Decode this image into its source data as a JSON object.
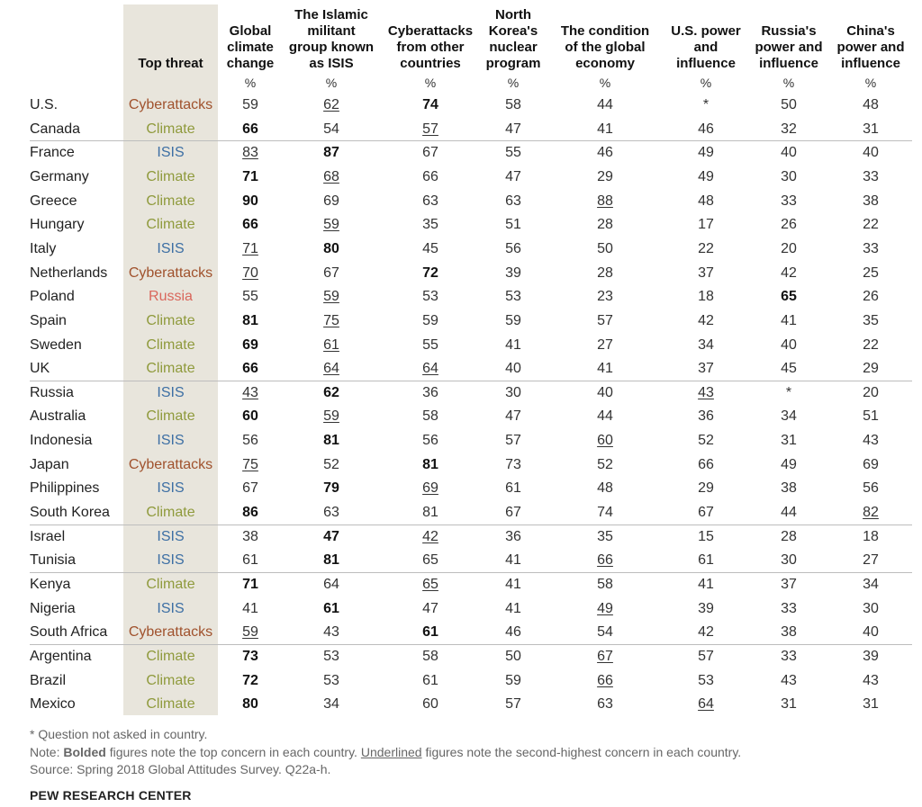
{
  "colors": {
    "Cyberattacks": "#a0522d",
    "Climate": "#8f9a3c",
    "ISIS": "#3d6fa4",
    "Russia": "#d9675c"
  },
  "chart_data": {
    "type": "table",
    "top_threat_header": "Top threat",
    "unit_label": "%",
    "columns": [
      "Global\nclimate\nchange",
      "The Islamic\nmilitant\ngroup known\nas ISIS",
      "Cyberattacks\nfrom other\ncountries",
      "North\nKorea's\nnuclear\nprogram",
      "The condition\nof the global\neconomy",
      "U.S. power\nand\ninfluence",
      "Russia's\npower and\ninfluence",
      "China's\npower and\ninfluence"
    ],
    "rows": [
      {
        "country": "U.S.",
        "top_threat": "Cyberattacks",
        "values": [
          "59",
          "62",
          "74",
          "58",
          "44",
          "*",
          "50",
          "48"
        ],
        "bold": 2,
        "underline": 1
      },
      {
        "country": "Canada",
        "top_threat": "Climate",
        "values": [
          "66",
          "54",
          "57",
          "47",
          "41",
          "46",
          "32",
          "31"
        ],
        "bold": 0,
        "underline": 2
      },
      {
        "country": "France",
        "top_threat": "ISIS",
        "values": [
          "83",
          "87",
          "67",
          "55",
          "46",
          "49",
          "40",
          "40"
        ],
        "bold": 1,
        "underline": 0
      },
      {
        "country": "Germany",
        "top_threat": "Climate",
        "values": [
          "71",
          "68",
          "66",
          "47",
          "29",
          "49",
          "30",
          "33"
        ],
        "bold": 0,
        "underline": 1
      },
      {
        "country": "Greece",
        "top_threat": "Climate",
        "values": [
          "90",
          "69",
          "63",
          "63",
          "88",
          "48",
          "33",
          "38"
        ],
        "bold": 0,
        "underline": 4
      },
      {
        "country": "Hungary",
        "top_threat": "Climate",
        "values": [
          "66",
          "59",
          "35",
          "51",
          "28",
          "17",
          "26",
          "22"
        ],
        "bold": 0,
        "underline": 1
      },
      {
        "country": "Italy",
        "top_threat": "ISIS",
        "values": [
          "71",
          "80",
          "45",
          "56",
          "50",
          "22",
          "20",
          "33"
        ],
        "bold": 1,
        "underline": 0
      },
      {
        "country": "Netherlands",
        "top_threat": "Cyberattacks",
        "values": [
          "70",
          "67",
          "72",
          "39",
          "28",
          "37",
          "42",
          "25"
        ],
        "bold": 2,
        "underline": 0
      },
      {
        "country": "Poland",
        "top_threat": "Russia",
        "values": [
          "55",
          "59",
          "53",
          "53",
          "23",
          "18",
          "65",
          "26"
        ],
        "bold": 6,
        "underline": 1
      },
      {
        "country": "Spain",
        "top_threat": "Climate",
        "values": [
          "81",
          "75",
          "59",
          "59",
          "57",
          "42",
          "41",
          "35"
        ],
        "bold": 0,
        "underline": 1
      },
      {
        "country": "Sweden",
        "top_threat": "Climate",
        "values": [
          "69",
          "61",
          "55",
          "41",
          "27",
          "34",
          "40",
          "22"
        ],
        "bold": 0,
        "underline": 1
      },
      {
        "country": "UK",
        "top_threat": "Climate",
        "values": [
          "66",
          "64",
          "64",
          "40",
          "41",
          "37",
          "45",
          "29"
        ],
        "bold": 0,
        "underline": [
          1,
          2
        ]
      },
      {
        "country": "Russia",
        "top_threat": "ISIS",
        "values": [
          "43",
          "62",
          "36",
          "30",
          "40",
          "43",
          "*",
          "20"
        ],
        "bold": 1,
        "underline": [
          0,
          5
        ]
      },
      {
        "country": "Australia",
        "top_threat": "Climate",
        "values": [
          "60",
          "59",
          "58",
          "47",
          "44",
          "36",
          "34",
          "51"
        ],
        "bold": 0,
        "underline": 1
      },
      {
        "country": "Indonesia",
        "top_threat": "ISIS",
        "values": [
          "56",
          "81",
          "56",
          "57",
          "60",
          "52",
          "31",
          "43"
        ],
        "bold": 1,
        "underline": 4
      },
      {
        "country": "Japan",
        "top_threat": "Cyberattacks",
        "values": [
          "75",
          "52",
          "81",
          "73",
          "52",
          "66",
          "49",
          "69"
        ],
        "bold": 2,
        "underline": 0
      },
      {
        "country": "Philippines",
        "top_threat": "ISIS",
        "values": [
          "67",
          "79",
          "69",
          "61",
          "48",
          "29",
          "38",
          "56"
        ],
        "bold": 1,
        "underline": 2
      },
      {
        "country": "South Korea",
        "top_threat": "Climate",
        "values": [
          "86",
          "63",
          "81",
          "67",
          "74",
          "67",
          "44",
          "82"
        ],
        "bold": 0,
        "underline": 7
      },
      {
        "country": "Israel",
        "top_threat": "ISIS",
        "values": [
          "38",
          "47",
          "42",
          "36",
          "35",
          "15",
          "28",
          "18"
        ],
        "bold": 1,
        "underline": 2
      },
      {
        "country": "Tunisia",
        "top_threat": "ISIS",
        "values": [
          "61",
          "81",
          "65",
          "41",
          "66",
          "61",
          "30",
          "27"
        ],
        "bold": 1,
        "underline": 4
      },
      {
        "country": "Kenya",
        "top_threat": "Climate",
        "values": [
          "71",
          "64",
          "65",
          "41",
          "58",
          "41",
          "37",
          "34"
        ],
        "bold": 0,
        "underline": 2
      },
      {
        "country": "Nigeria",
        "top_threat": "ISIS",
        "values": [
          "41",
          "61",
          "47",
          "41",
          "49",
          "39",
          "33",
          "30"
        ],
        "bold": 1,
        "underline": 4
      },
      {
        "country": "South Africa",
        "top_threat": "Cyberattacks",
        "values": [
          "59",
          "43",
          "61",
          "46",
          "54",
          "42",
          "38",
          "40"
        ],
        "bold": 2,
        "underline": 0
      },
      {
        "country": "Argentina",
        "top_threat": "Climate",
        "values": [
          "73",
          "53",
          "58",
          "50",
          "67",
          "57",
          "33",
          "39"
        ],
        "bold": 0,
        "underline": 4
      },
      {
        "country": "Brazil",
        "top_threat": "Climate",
        "values": [
          "72",
          "53",
          "61",
          "59",
          "66",
          "53",
          "43",
          "43"
        ],
        "bold": 0,
        "underline": 4
      },
      {
        "country": "Mexico",
        "top_threat": "Climate",
        "values": [
          "80",
          "34",
          "60",
          "57",
          "63",
          "64",
          "31",
          "31"
        ],
        "bold": 0,
        "underline": 5
      }
    ],
    "group_dividers_after_row": [
      1,
      11,
      17,
      19,
      22
    ]
  },
  "footnotes": {
    "asterisk": "* Question not asked in country.",
    "note_prefix": "Note: ",
    "note_bold": "Bolded",
    "note_mid": " figures note the top concern in each country. ",
    "note_underlined": "Underlined",
    "note_suffix": " figures note the second-highest concern in each country.",
    "source": "Source: Spring 2018 Global Attitudes Survey. Q22a-h."
  },
  "brand": "PEW RESEARCH CENTER"
}
